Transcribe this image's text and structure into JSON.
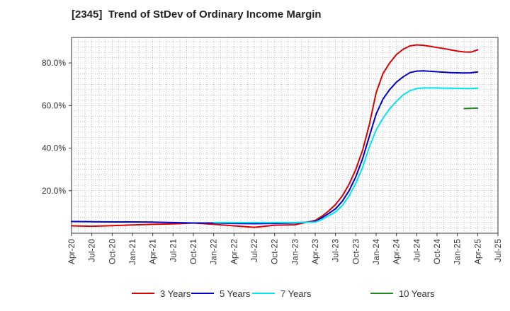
{
  "chart_data": {
    "type": "line",
    "title": "[2345]  Trend of StDev of Ordinary Income Margin",
    "xlabel": "",
    "ylabel": "",
    "ylim": [
      0,
      92
    ],
    "xlim": [
      "2020-04",
      "2025-07"
    ],
    "grid": true,
    "legend_position": "bottom",
    "x_ticks": [
      "Apr-20",
      "Jul-20",
      "Oct-20",
      "Jan-21",
      "Apr-21",
      "Jul-21",
      "Oct-21",
      "Jan-22",
      "Apr-22",
      "Jul-22",
      "Oct-22",
      "Jan-23",
      "Apr-23",
      "Jul-23",
      "Oct-23",
      "Jan-24",
      "Apr-24",
      "Jul-24",
      "Oct-24",
      "Jan-25",
      "Apr-25",
      "Jul-25"
    ],
    "y_ticks": [
      {
        "value": 20,
        "label": "20.0%"
      },
      {
        "value": 40,
        "label": "40.0%"
      },
      {
        "value": 60,
        "label": "60.0%"
      },
      {
        "value": 80,
        "label": "80.0%"
      }
    ],
    "series": [
      {
        "name": "3 Years",
        "color": "#dd0000",
        "x": [
          "2020-04",
          "2020-07",
          "2020-10",
          "2021-01",
          "2021-04",
          "2021-07",
          "2021-10",
          "2022-01",
          "2022-04",
          "2022-07",
          "2022-10",
          "2023-01",
          "2023-04",
          "2023-05",
          "2023-06",
          "2023-07",
          "2023-08",
          "2023-09",
          "2023-10",
          "2023-11",
          "2023-12",
          "2024-01",
          "2024-02",
          "2024-03",
          "2024-04",
          "2024-05",
          "2024-06",
          "2024-07",
          "2024-08",
          "2024-09",
          "2024-10",
          "2024-11",
          "2024-12",
          "2025-01",
          "2025-02",
          "2025-03",
          "2025-04"
        ],
        "values": [
          3.5,
          3.3,
          3.6,
          3.9,
          4.2,
          4.4,
          4.8,
          4.2,
          3.5,
          2.8,
          3.8,
          4.0,
          6.0,
          8.0,
          10.5,
          13.5,
          17.5,
          23,
          30,
          39,
          51,
          66,
          75,
          80,
          84,
          86.5,
          88,
          88.5,
          88.3,
          87.8,
          87.3,
          86.8,
          86.2,
          85.6,
          85.2,
          85.1,
          86.2
        ]
      },
      {
        "name": "5 Years",
        "color": "#0000cc",
        "x": [
          "2020-04",
          "2020-07",
          "2020-10",
          "2021-01",
          "2021-04",
          "2021-07",
          "2021-10",
          "2022-01",
          "2022-04",
          "2022-07",
          "2022-10",
          "2023-01",
          "2023-04",
          "2023-05",
          "2023-06",
          "2023-07",
          "2023-08",
          "2023-09",
          "2023-10",
          "2023-11",
          "2023-12",
          "2024-01",
          "2024-02",
          "2024-03",
          "2024-04",
          "2024-05",
          "2024-06",
          "2024-07",
          "2024-08",
          "2024-09",
          "2024-10",
          "2024-11",
          "2024-12",
          "2025-01",
          "2025-02",
          "2025-03",
          "2025-04"
        ],
        "values": [
          5.5,
          5.4,
          5.3,
          5.3,
          5.2,
          5.0,
          4.8,
          4.8,
          4.6,
          4.5,
          4.6,
          4.8,
          5.5,
          7.3,
          9.3,
          11.5,
          15,
          20,
          26.5,
          35,
          45.5,
          56,
          63,
          67.5,
          71,
          73.5,
          75.5,
          76.2,
          76.3,
          76.1,
          75.9,
          75.7,
          75.5,
          75.4,
          75.3,
          75.4,
          75.8
        ]
      },
      {
        "name": "7 Years",
        "color": "#00e5ee",
        "x": [
          "2020-04",
          "2020-07",
          "2020-10",
          "2021-01",
          "2021-04",
          "2021-07",
          "2021-10",
          "2022-01",
          "2022-04",
          "2022-07",
          "2022-10",
          "2023-01",
          "2023-04",
          "2023-05",
          "2023-06",
          "2023-07",
          "2023-08",
          "2023-09",
          "2023-10",
          "2023-11",
          "2023-12",
          "2024-01",
          "2024-02",
          "2024-03",
          "2024-04",
          "2024-05",
          "2024-06",
          "2024-07",
          "2024-08",
          "2024-09",
          "2024-10",
          "2024-11",
          "2024-12",
          "2025-01",
          "2025-02",
          "2025-03",
          "2025-04"
        ],
        "values": [
          null,
          null,
          null,
          null,
          null,
          null,
          null,
          5.0,
          5.0,
          5.0,
          5.0,
          5.0,
          5.2,
          6.5,
          8.2,
          10,
          13,
          17.5,
          23.5,
          31,
          40.5,
          48.5,
          54,
          58.5,
          62,
          65,
          67,
          68,
          68.3,
          68.3,
          68.3,
          68.2,
          68.2,
          68.1,
          68.0,
          68.0,
          68.2
        ]
      },
      {
        "name": "10 Years",
        "color": "#228b22",
        "x": [
          "2025-02",
          "2025-03",
          "2025-04"
        ],
        "values": [
          58.6,
          58.7,
          58.8
        ]
      }
    ]
  }
}
